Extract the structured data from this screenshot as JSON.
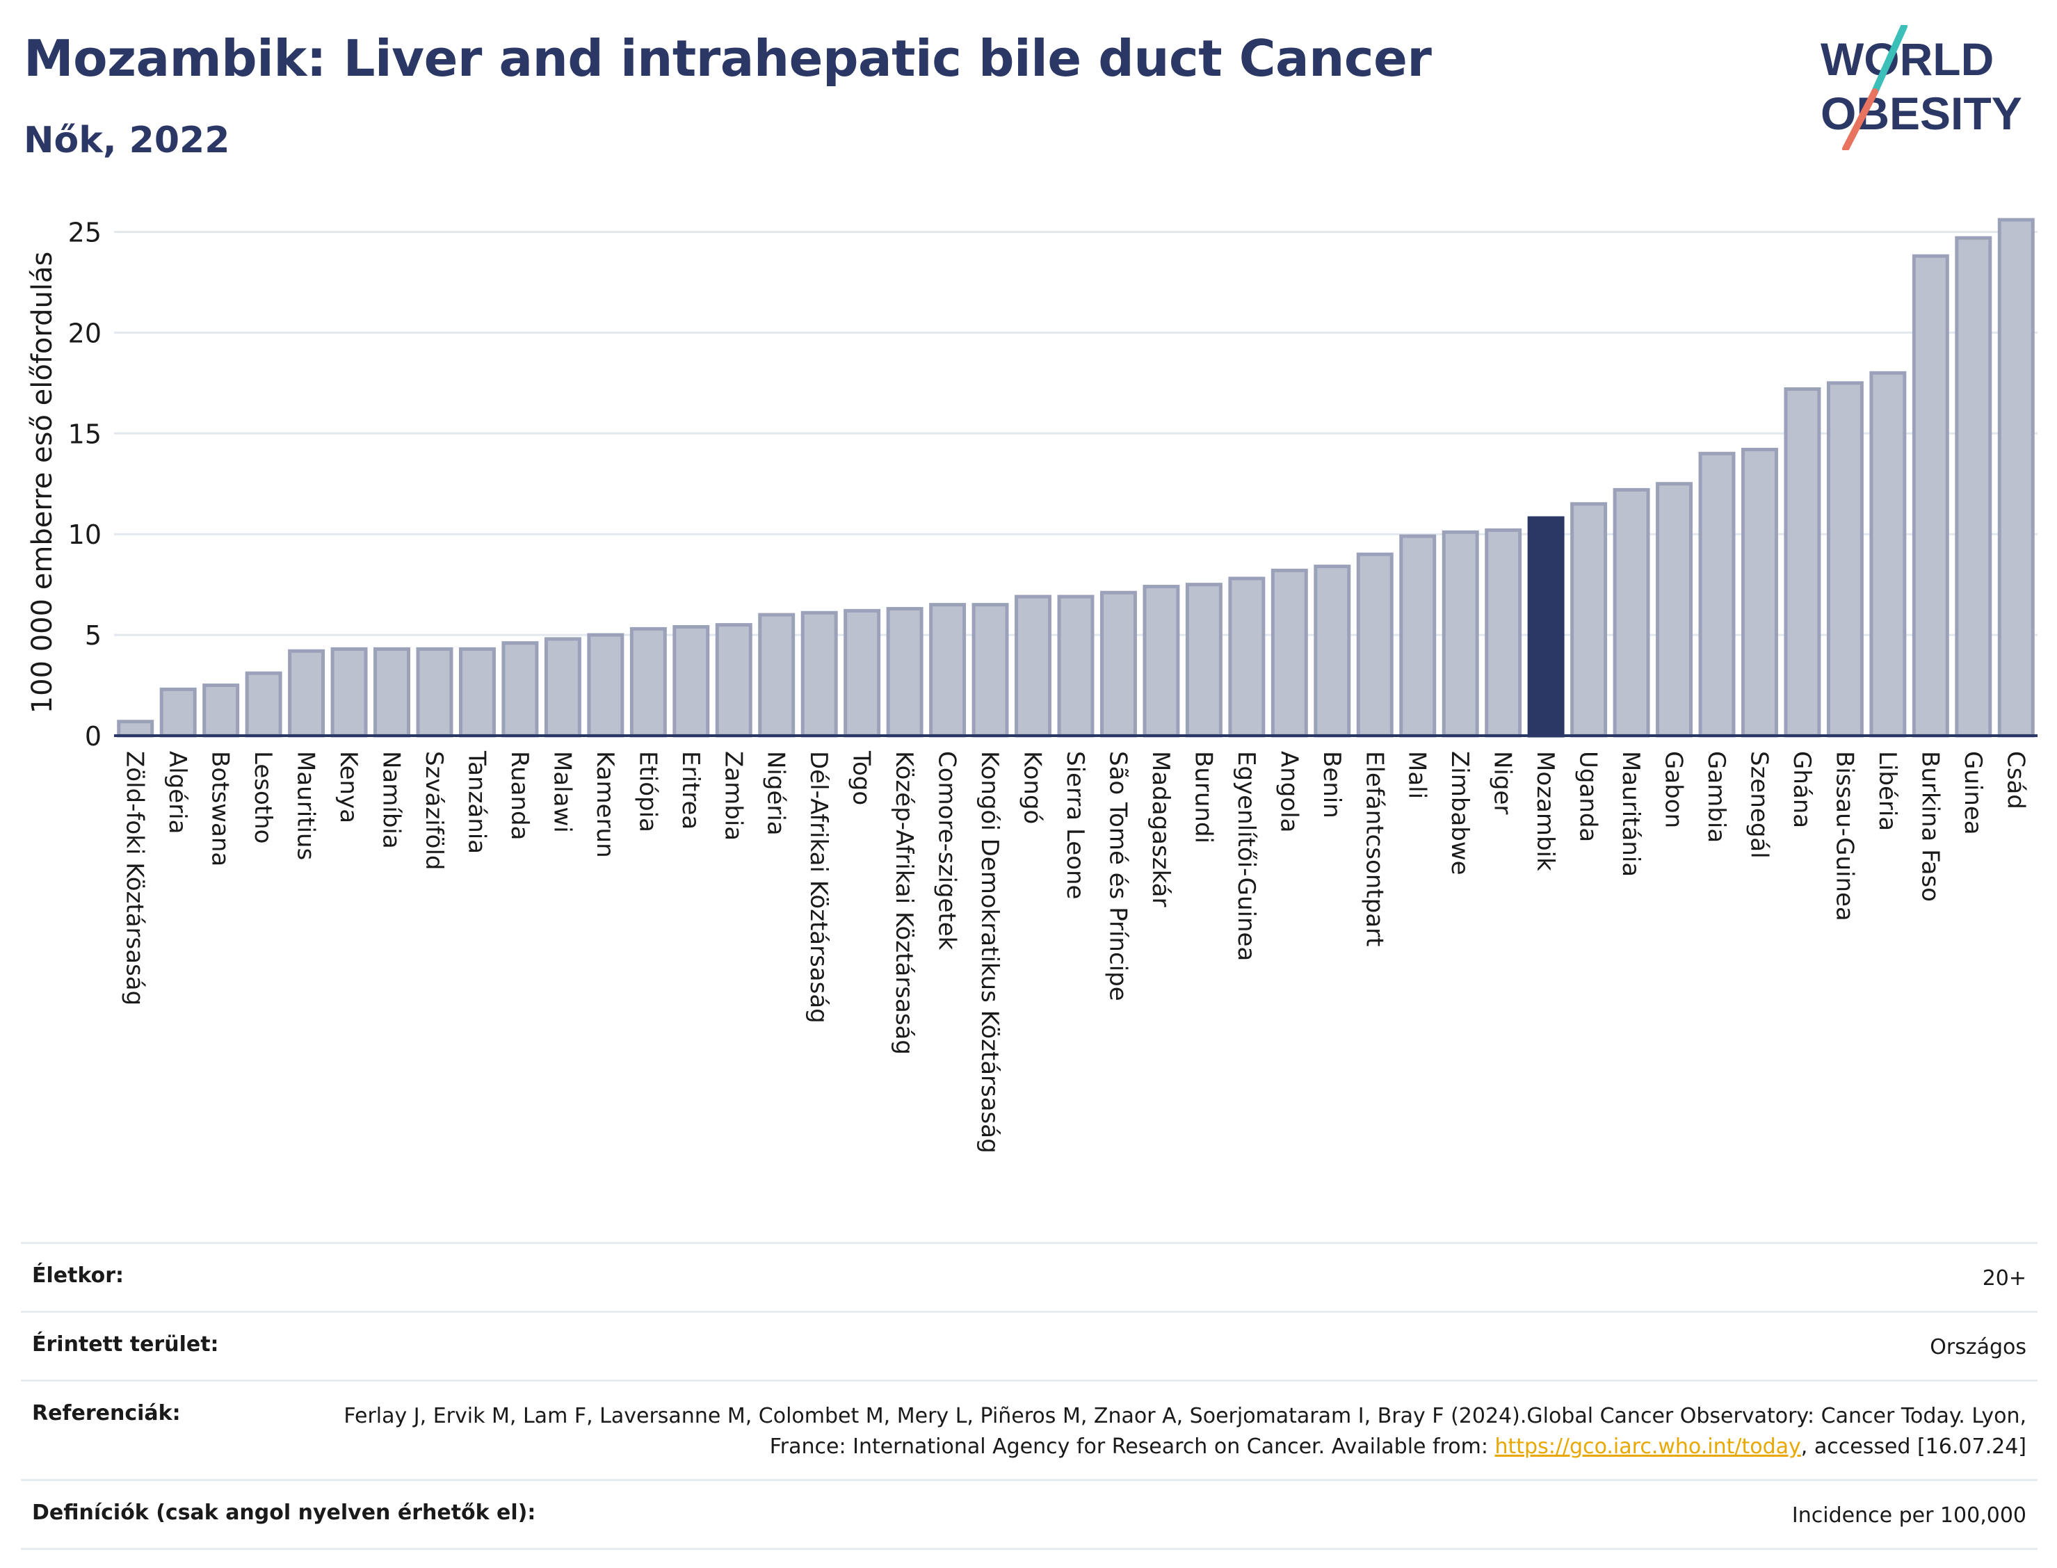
{
  "header": {
    "title": "Mozambik: Liver and intrahepatic bile duct Cancer",
    "subtitle": "Nők, 2022"
  },
  "logo": {
    "line1": "WORLD",
    "line2": "OBESITY"
  },
  "chart_data": {
    "type": "bar",
    "ylabel": "100 000 emberre eső előfordulás",
    "ylim": [
      0,
      26.5
    ],
    "yticks": [
      0,
      5,
      10,
      15,
      20,
      25
    ],
    "highlight": "Mozambik",
    "colors": {
      "bar": "#bcc1d0",
      "bar_edge": "#9aa1b9",
      "highlight": "#2b3765",
      "grid": "#e3e8ef",
      "axis": "#2b3765"
    },
    "categories": [
      "Zöld-foki Köztársaság",
      "Algéria",
      "Botswana",
      "Lesotho",
      "Mauritius",
      "Kenya",
      "Namíbia",
      "Szváziföld",
      "Tanzánia",
      "Ruanda",
      "Malawi",
      "Kamerun",
      "Etiópia",
      "Eritrea",
      "Zambia",
      "Nigéria",
      "Dél-Afrikai Köztársaság",
      "Togo",
      "Közép-Afrikai Köztársaság",
      "Comore-szigetek",
      "Kongói Demokratikus Köztársaság",
      "Kongó",
      "Sierra Leone",
      "São Tomé és Príncipe",
      "Madagaszkár",
      "Burundi",
      "Egyenlítői-Guinea",
      "Angola",
      "Benin",
      "Elefántcsontpart",
      "Mali",
      "Zimbabwe",
      "Niger",
      "Mozambik",
      "Uganda",
      "Mauritánia",
      "Gabon",
      "Gambia",
      "Szenegál",
      "Ghána",
      "Bissau-Guinea",
      "Libéria",
      "Burkina Faso",
      "Guinea",
      "Csád"
    ],
    "values": [
      0.7,
      2.3,
      2.5,
      3.1,
      4.2,
      4.3,
      4.3,
      4.3,
      4.3,
      4.6,
      4.8,
      5.0,
      5.3,
      5.4,
      5.5,
      6.0,
      6.1,
      6.2,
      6.3,
      6.5,
      6.5,
      6.9,
      6.9,
      7.1,
      7.4,
      7.5,
      7.8,
      8.2,
      8.4,
      9.0,
      9.9,
      10.1,
      10.2,
      10.8,
      11.5,
      12.2,
      12.5,
      14.0,
      14.2,
      17.2,
      17.5,
      18.0,
      23.8,
      24.7,
      25.6
    ]
  },
  "info": {
    "age_label": "Életkor:",
    "age_value": "20+",
    "area_label": "Érintett terület:",
    "area_value": "Országos",
    "ref_label": "Referenciák:",
    "ref_text_1": "Ferlay J, Ervik M, Lam F, Laversanne M, Colombet M, Mery L, Piñeros M, Znaor A, Soerjomataram I, Bray F (2024).Global Cancer Observatory: Cancer Today. Lyon, France: International Agency for Research on Cancer. Available from: ",
    "ref_link": "https://gco.iarc.who.int/today",
    "ref_text_2": ", accessed [16.07.24]",
    "def_label": "Definíciók (csak angol nyelven érhetők el):",
    "def_value": "Incidence per 100,000"
  }
}
